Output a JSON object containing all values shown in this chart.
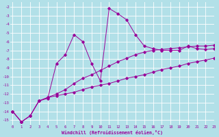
{
  "xlabel": "Windchill (Refroidissement éolien,°C)",
  "background_color": "#b2e0e8",
  "grid_color": "#ffffff",
  "line_color": "#990099",
  "x_hours": [
    0,
    1,
    2,
    3,
    4,
    5,
    6,
    7,
    8,
    9,
    10,
    11,
    12,
    13,
    14,
    15,
    16,
    17,
    18,
    19,
    20,
    21,
    22,
    23
  ],
  "line_wavy": [
    -14.0,
    -15.2,
    -14.5,
    -12.8,
    -12.5,
    -8.5,
    -7.5,
    -5.2,
    -6.0,
    -8.5,
    -10.5,
    -2.2,
    -2.8,
    -3.5,
    -5.2,
    -6.5,
    -6.8,
    -7.0,
    -7.0,
    -7.0,
    -6.5,
    -6.8,
    -6.9,
    -6.8
  ],
  "line_mid": [
    -14.0,
    -15.2,
    -14.5,
    -12.8,
    -12.4,
    -12.0,
    -11.5,
    -10.8,
    -10.2,
    -9.8,
    -9.3,
    -8.8,
    -8.3,
    -7.9,
    -7.5,
    -7.2,
    -7.0,
    -6.9,
    -6.8,
    -6.7,
    -6.6,
    -6.5,
    -6.5,
    -6.4
  ],
  "line_low": [
    -14.0,
    -15.2,
    -14.5,
    -12.8,
    -12.4,
    -12.2,
    -12.0,
    -11.8,
    -11.5,
    -11.2,
    -11.0,
    -10.8,
    -10.5,
    -10.2,
    -10.0,
    -9.8,
    -9.5,
    -9.2,
    -9.0,
    -8.8,
    -8.5,
    -8.3,
    -8.1,
    -7.9
  ],
  "ylim": [
    -15.5,
    -1.5
  ],
  "xlim": [
    0,
    23
  ],
  "yticks": [
    -2,
    -3,
    -4,
    -5,
    -6,
    -7,
    -8,
    -9,
    -10,
    -11,
    -12,
    -13,
    -14,
    -15
  ],
  "xticks": [
    0,
    1,
    2,
    3,
    4,
    5,
    6,
    7,
    8,
    9,
    10,
    11,
    12,
    13,
    14,
    15,
    16,
    17,
    18,
    19,
    20,
    21,
    22,
    23
  ]
}
